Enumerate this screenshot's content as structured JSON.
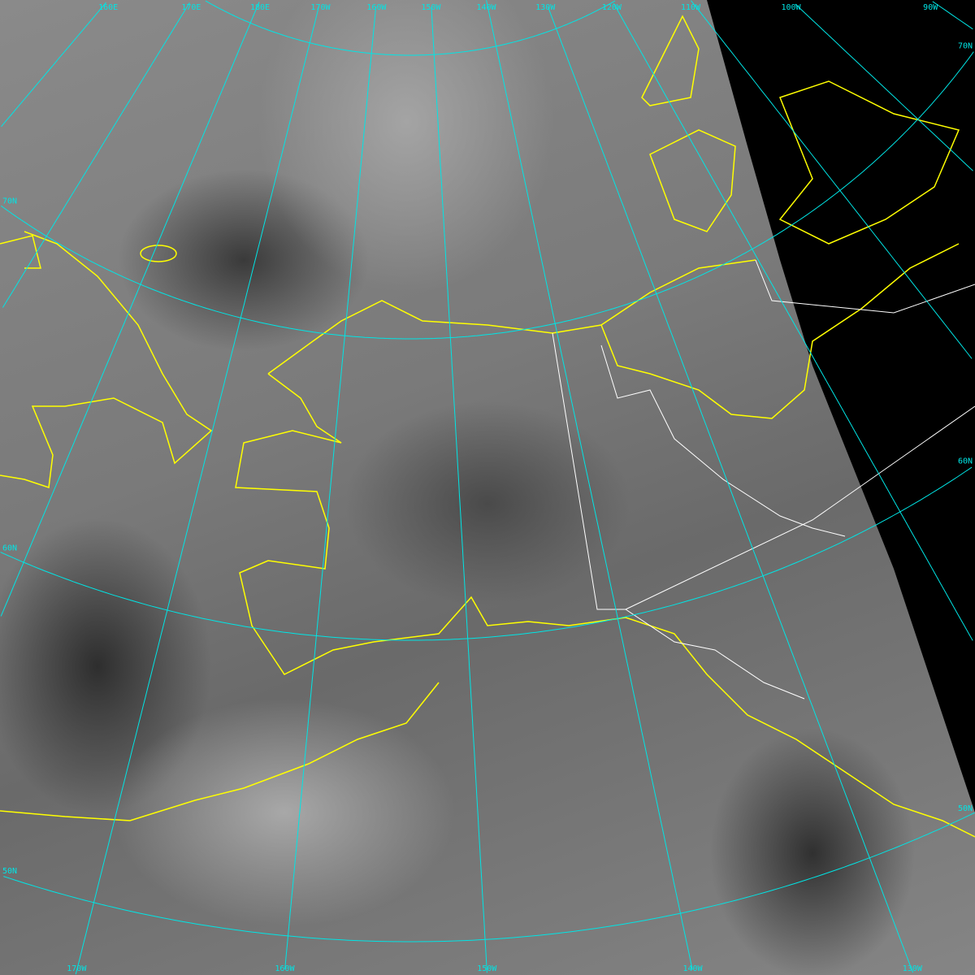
{
  "colors": {
    "graticule": "#00e5e5",
    "coastline": "#ffff00",
    "borders": "#ffffff",
    "no_data": "#000000"
  },
  "graticule": {
    "top_labels": [
      {
        "text": "160E",
        "lon": 160
      },
      {
        "text": "170E",
        "lon": 170
      },
      {
        "text": "180E",
        "lon": 180
      },
      {
        "text": "170W",
        "lon": -170
      },
      {
        "text": "160W",
        "lon": -160
      },
      {
        "text": "150W",
        "lon": -150
      },
      {
        "text": "140W",
        "lon": -140
      },
      {
        "text": "130W",
        "lon": -130
      },
      {
        "text": "120W",
        "lon": -120
      },
      {
        "text": "110W",
        "lon": -110
      },
      {
        "text": "100W",
        "lon": -100
      },
      {
        "text": "90W",
        "lon": -90
      }
    ],
    "bottom_labels": [
      {
        "text": "170W",
        "lon": -170
      },
      {
        "text": "160W",
        "lon": -160
      },
      {
        "text": "150W",
        "lon": -150
      },
      {
        "text": "140W",
        "lon": -140
      },
      {
        "text": "130W",
        "lon": -130
      }
    ],
    "left_labels": [
      {
        "text": "70N",
        "lat": 70
      },
      {
        "text": "60N",
        "lat": 60
      },
      {
        "text": "50N",
        "lat": 50
      }
    ],
    "right_labels": [
      {
        "text": "70N",
        "lat": 70
      },
      {
        "text": "60N",
        "lat": 60
      },
      {
        "text": "50N",
        "lat": 50
      }
    ],
    "latitudes": [
      80,
      70,
      60,
      50
    ]
  }
}
